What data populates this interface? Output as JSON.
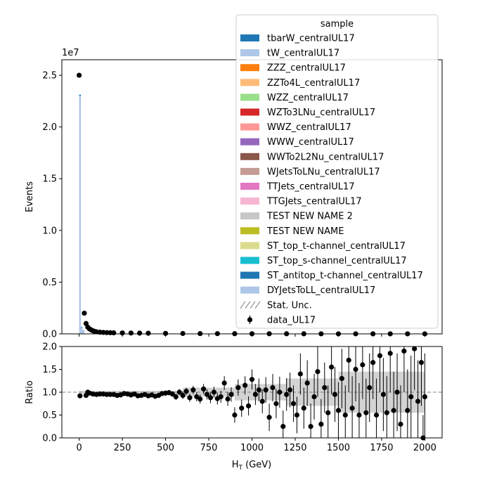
{
  "chart_data": [
    {
      "type": "bar",
      "panel": "main",
      "xlabel": "",
      "ylabel": "Events",
      "y_exponent_label": "1e7",
      "xlim": [
        -100,
        2100
      ],
      "ylim": [
        0,
        26500000
      ],
      "yticks": [
        0,
        5000000,
        10000000,
        15000000,
        20000000,
        25000000
      ],
      "ytick_labels": [
        "0.0",
        "0.5",
        "1.0",
        "1.5",
        "2.0",
        "2.5"
      ],
      "mc_stack_bins": [
        {
          "x0": 0,
          "x1": 10,
          "values": {
            "DYJetsToLL_centralUL17": 23000000,
            "ST_antitop_t-channel_centralUL17": 120000
          }
        },
        {
          "x0": 10,
          "x1": 20,
          "values": {
            "DYJetsToLL_centralUL17": 600000,
            "ST_antitop_t-channel_centralUL17": 60000
          }
        },
        {
          "x0": 20,
          "x1": 30,
          "values": {
            "DYJetsToLL_centralUL17": 300000,
            "ST_antitop_t-channel_centralUL17": 30000
          }
        }
      ],
      "data_series": {
        "name": "data_UL17",
        "points": [
          [
            0,
            25000000
          ],
          [
            30,
            2000000
          ],
          [
            40,
            1000000
          ],
          [
            50,
            650000
          ],
          [
            60,
            480000
          ],
          [
            70,
            380000
          ],
          [
            80,
            300000
          ],
          [
            90,
            240000
          ],
          [
            100,
            200000
          ],
          [
            120,
            160000
          ],
          [
            140,
            140000
          ],
          [
            160,
            120000
          ],
          [
            180,
            110000
          ],
          [
            200,
            100000
          ],
          [
            250,
            90000
          ],
          [
            300,
            80000
          ],
          [
            350,
            70000
          ],
          [
            400,
            60000
          ],
          [
            500,
            45000
          ],
          [
            600,
            35000
          ],
          [
            700,
            25000
          ],
          [
            800,
            20000
          ],
          [
            900,
            15000
          ],
          [
            1000,
            12000
          ],
          [
            1100,
            10000
          ],
          [
            1200,
            8000
          ],
          [
            1300,
            6000
          ],
          [
            1400,
            5000
          ],
          [
            1500,
            4000
          ],
          [
            1600,
            3000
          ],
          [
            1700,
            2500
          ],
          [
            1800,
            2000
          ],
          [
            1900,
            1500
          ],
          [
            2000,
            1000
          ]
        ]
      },
      "legend": {
        "title": "sample",
        "position": "upper right",
        "entries": [
          {
            "label": "tbarW_centralUL17",
            "color": "#1f77b4",
            "kind": "patch"
          },
          {
            "label": "tW_centralUL17",
            "color": "#aec7e8",
            "kind": "patch"
          },
          {
            "label": "ZZZ_centralUL17",
            "color": "#ff7f0e",
            "kind": "patch"
          },
          {
            "label": "ZZTo4L_centralUL17",
            "color": "#ffbb78",
            "kind": "patch"
          },
          {
            "label": "WZZ_centralUL17",
            "color": "#98df8a",
            "kind": "patch"
          },
          {
            "label": "WZTo3LNu_centralUL17",
            "color": "#d62728",
            "kind": "patch"
          },
          {
            "label": "WWZ_centralUL17",
            "color": "#ff9896",
            "kind": "patch"
          },
          {
            "label": "WWW_centralUL17",
            "color": "#9467bd",
            "kind": "patch"
          },
          {
            "label": "WWTo2L2Nu_centralUL17",
            "color": "#8c564b",
            "kind": "patch"
          },
          {
            "label": "WJetsToLNu_centralUL17",
            "color": "#c49c94",
            "kind": "patch"
          },
          {
            "label": "TTJets_centralUL17",
            "color": "#e377c2",
            "kind": "patch"
          },
          {
            "label": "TTGJets_centralUL17",
            "color": "#f7b6d2",
            "kind": "patch"
          },
          {
            "label": "TEST NEW NAME 2",
            "color": "#c7c7c7",
            "kind": "patch"
          },
          {
            "label": "TEST NEW NAME",
            "color": "#bcbd22",
            "kind": "patch"
          },
          {
            "label": "ST_top_t-channel_centralUL17",
            "color": "#dbdb8d",
            "kind": "patch"
          },
          {
            "label": "ST_top_s-channel_centralUL17",
            "color": "#17becf",
            "kind": "patch"
          },
          {
            "label": "ST_antitop_t-channel_centralUL17",
            "color": "#1f77b4",
            "kind": "patch"
          },
          {
            "label": "DYJetsToLL_centralUL17",
            "color": "#aec7e8",
            "kind": "patch"
          },
          {
            "label": "Stat. Unc.",
            "color": "#808080",
            "kind": "hatch"
          },
          {
            "label": "data_UL17",
            "color": "#000000",
            "kind": "errorbar"
          }
        ]
      }
    },
    {
      "type": "scatter",
      "panel": "ratio",
      "xlabel": "H_T (GeV)",
      "xlabel_main": "H",
      "xlabel_sub": "T",
      "xlabel_unit": " (GeV)",
      "ylabel": "Ratio",
      "xlim": [
        -100,
        2100
      ],
      "ylim": [
        0,
        2
      ],
      "xticks": [
        0,
        250,
        500,
        750,
        1000,
        1250,
        1500,
        1750,
        2000
      ],
      "xtick_labels": [
        "0",
        "250",
        "500",
        "750",
        "1000",
        "1250",
        "1500",
        "1750",
        "2000"
      ],
      "yticks": [
        0,
        0.5,
        1,
        1.5,
        2
      ],
      "ytick_labels": [
        "0.0",
        "0.5",
        "1.0",
        "1.5",
        "2.0"
      ],
      "reference_line": 1.0,
      "points": [
        {
          "x": 5,
          "y": 0.92,
          "err": 0.02
        },
        {
          "x": 40,
          "y": 0.93,
          "err": 0.03
        },
        {
          "x": 50,
          "y": 1.0,
          "err": 0.03
        },
        {
          "x": 60,
          "y": 0.98,
          "err": 0.03
        },
        {
          "x": 80,
          "y": 0.96,
          "err": 0.03
        },
        {
          "x": 100,
          "y": 0.95,
          "err": 0.03
        },
        {
          "x": 120,
          "y": 0.96,
          "err": 0.03
        },
        {
          "x": 140,
          "y": 0.96,
          "err": 0.03
        },
        {
          "x": 160,
          "y": 0.95,
          "err": 0.03
        },
        {
          "x": 180,
          "y": 0.95,
          "err": 0.03
        },
        {
          "x": 200,
          "y": 0.95,
          "err": 0.03
        },
        {
          "x": 220,
          "y": 0.93,
          "err": 0.03
        },
        {
          "x": 240,
          "y": 0.94,
          "err": 0.03
        },
        {
          "x": 260,
          "y": 0.97,
          "err": 0.04
        },
        {
          "x": 280,
          "y": 0.96,
          "err": 0.04
        },
        {
          "x": 300,
          "y": 0.94,
          "err": 0.04
        },
        {
          "x": 320,
          "y": 0.96,
          "err": 0.04
        },
        {
          "x": 340,
          "y": 0.92,
          "err": 0.04
        },
        {
          "x": 360,
          "y": 0.93,
          "err": 0.04
        },
        {
          "x": 380,
          "y": 0.95,
          "err": 0.04
        },
        {
          "x": 400,
          "y": 0.92,
          "err": 0.05
        },
        {
          "x": 420,
          "y": 0.94,
          "err": 0.05
        },
        {
          "x": 440,
          "y": 0.91,
          "err": 0.05
        },
        {
          "x": 460,
          "y": 0.93,
          "err": 0.05
        },
        {
          "x": 480,
          "y": 0.97,
          "err": 0.05
        },
        {
          "x": 500,
          "y": 0.98,
          "err": 0.06
        },
        {
          "x": 520,
          "y": 0.99,
          "err": 0.06
        },
        {
          "x": 540,
          "y": 0.96,
          "err": 0.06
        },
        {
          "x": 560,
          "y": 0.9,
          "err": 0.07
        },
        {
          "x": 580,
          "y": 1.0,
          "err": 0.07
        },
        {
          "x": 600,
          "y": 0.93,
          "err": 0.08
        },
        {
          "x": 620,
          "y": 1.02,
          "err": 0.08
        },
        {
          "x": 640,
          "y": 0.88,
          "err": 0.09
        },
        {
          "x": 660,
          "y": 1.05,
          "err": 0.09
        },
        {
          "x": 680,
          "y": 0.9,
          "err": 0.1
        },
        {
          "x": 700,
          "y": 0.85,
          "err": 0.1
        },
        {
          "x": 720,
          "y": 1.07,
          "err": 0.11
        },
        {
          "x": 740,
          "y": 0.95,
          "err": 0.11
        },
        {
          "x": 760,
          "y": 0.88,
          "err": 0.12
        },
        {
          "x": 780,
          "y": 1.0,
          "err": 0.12
        },
        {
          "x": 800,
          "y": 0.86,
          "err": 0.13
        },
        {
          "x": 820,
          "y": 0.9,
          "err": 0.13
        },
        {
          "x": 840,
          "y": 1.2,
          "err": 0.15
        },
        {
          "x": 860,
          "y": 0.85,
          "err": 0.15
        },
        {
          "x": 880,
          "y": 0.95,
          "err": 0.16
        },
        {
          "x": 900,
          "y": 0.5,
          "err": 0.17
        },
        {
          "x": 920,
          "y": 1.1,
          "err": 0.18
        },
        {
          "x": 940,
          "y": 0.65,
          "err": 0.19
        },
        {
          "x": 960,
          "y": 1.15,
          "err": 0.2
        },
        {
          "x": 980,
          "y": 0.7,
          "err": 0.21
        },
        {
          "x": 1000,
          "y": 1.28,
          "err": 0.22
        },
        {
          "x": 1020,
          "y": 0.95,
          "err": 0.23
        },
        {
          "x": 1040,
          "y": 1.05,
          "err": 0.25
        },
        {
          "x": 1060,
          "y": 0.8,
          "err": 0.26
        },
        {
          "x": 1080,
          "y": 1.05,
          "err": 0.28
        },
        {
          "x": 1100,
          "y": 0.45,
          "err": 0.3
        },
        {
          "x": 1120,
          "y": 1.1,
          "err": 0.3
        },
        {
          "x": 1140,
          "y": 0.75,
          "err": 0.32
        },
        {
          "x": 1160,
          "y": 1.0,
          "err": 0.34
        },
        {
          "x": 1180,
          "y": 0.25,
          "err": 0.35
        },
        {
          "x": 1200,
          "y": 0.95,
          "err": 0.36
        },
        {
          "x": 1220,
          "y": 1.05,
          "err": 0.38
        },
        {
          "x": 1240,
          "y": 0.75,
          "err": 0.4
        },
        {
          "x": 1260,
          "y": 0.5,
          "err": 0.4
        },
        {
          "x": 1280,
          "y": 1.4,
          "err": 0.45
        },
        {
          "x": 1300,
          "y": 0.65,
          "err": 0.45
        },
        {
          "x": 1320,
          "y": 1.2,
          "err": 0.5
        },
        {
          "x": 1340,
          "y": 0.25,
          "err": 0.5
        },
        {
          "x": 1360,
          "y": 0.9,
          "err": 0.5
        },
        {
          "x": 1380,
          "y": 1.45,
          "err": 0.55
        },
        {
          "x": 1400,
          "y": 0.3,
          "err": 0.55
        },
        {
          "x": 1420,
          "y": 1.1,
          "err": 0.55
        },
        {
          "x": 1440,
          "y": 0.55,
          "err": 0.6
        },
        {
          "x": 1460,
          "y": 1.55,
          "err": 0.6
        },
        {
          "x": 1480,
          "y": 0.95,
          "err": 0.6
        },
        {
          "x": 1500,
          "y": 0.6,
          "err": 0.62
        },
        {
          "x": 1520,
          "y": 1.3,
          "err": 0.65
        },
        {
          "x": 1540,
          "y": 0.5,
          "err": 0.65
        },
        {
          "x": 1560,
          "y": 1.7,
          "err": 0.7
        },
        {
          "x": 1580,
          "y": 0.65,
          "err": 0.7
        },
        {
          "x": 1600,
          "y": 1.5,
          "err": 0.7
        },
        {
          "x": 1620,
          "y": 0.5,
          "err": 0.7
        },
        {
          "x": 1640,
          "y": 1.6,
          "err": 0.75
        },
        {
          "x": 1660,
          "y": 0.55,
          "err": 0.75
        },
        {
          "x": 1680,
          "y": 1.1,
          "err": 0.75
        },
        {
          "x": 1700,
          "y": 1.65,
          "err": 0.8
        },
        {
          "x": 1720,
          "y": 0.5,
          "err": 0.8
        },
        {
          "x": 1740,
          "y": 1.8,
          "err": 0.8
        },
        {
          "x": 1760,
          "y": 0.95,
          "err": 0.8
        },
        {
          "x": 1780,
          "y": 0.55,
          "err": 0.8
        },
        {
          "x": 1800,
          "y": 1.85,
          "err": 0.85
        },
        {
          "x": 1820,
          "y": 0.6,
          "err": 0.85
        },
        {
          "x": 1840,
          "y": 1.0,
          "err": 0.85
        },
        {
          "x": 1860,
          "y": 0.3,
          "err": 0.85
        },
        {
          "x": 1880,
          "y": 1.9,
          "err": 0.9
        },
        {
          "x": 1900,
          "y": 0.6,
          "err": 0.9
        },
        {
          "x": 1920,
          "y": 0.9,
          "err": 0.9
        },
        {
          "x": 1940,
          "y": 1.95,
          "err": 0.9
        },
        {
          "x": 1960,
          "y": 0.8,
          "err": 0.9
        },
        {
          "x": 1980,
          "y": 1.65,
          "err": 0.95
        },
        {
          "x": 1990,
          "y": 0.0,
          "err": 0.5
        },
        {
          "x": 2000,
          "y": 0.9,
          "err": 0.95
        }
      ],
      "unc_band": [
        {
          "x0": 0,
          "x1": 600,
          "lo": 0.97,
          "hi": 1.03
        },
        {
          "x0": 600,
          "x1": 900,
          "lo": 0.9,
          "hi": 1.1
        },
        {
          "x0": 900,
          "x1": 1200,
          "lo": 0.82,
          "hi": 1.18
        },
        {
          "x0": 1200,
          "x1": 1500,
          "lo": 0.7,
          "hi": 1.3
        },
        {
          "x0": 1500,
          "x1": 2000,
          "lo": 0.55,
          "hi": 1.45
        }
      ]
    }
  ]
}
